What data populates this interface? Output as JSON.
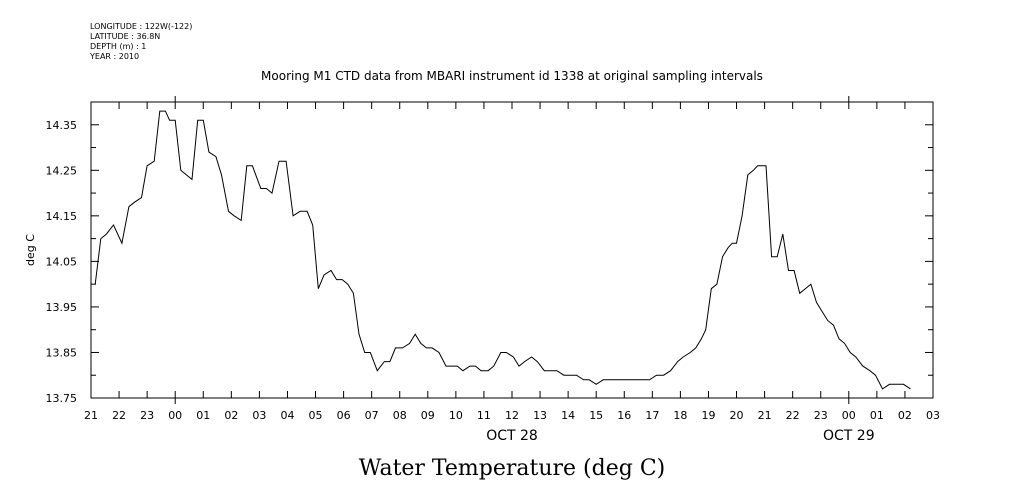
{
  "metadata": {
    "longitude": "LONGITUDE : 122W(-122)",
    "latitude": "LATITUDE : 36.8N",
    "depth": "DEPTH (m) : 1",
    "year": "YEAR : 2010"
  },
  "chart_data": {
    "type": "line",
    "title": "Mooring M1 CTD data from MBARI instrument id 1338 at original sampling intervals",
    "ylabel": "deg C",
    "xlabel": "Water Temperature (deg C)",
    "ylim": [
      13.75,
      14.4
    ],
    "xlim": [
      -3,
      27
    ],
    "y_ticks": [
      "14.35",
      "14.25",
      "14.15",
      "14.05",
      "13.95",
      "13.85",
      "13.75"
    ],
    "y_tick_values": [
      14.35,
      14.25,
      14.15,
      14.05,
      13.95,
      13.85,
      13.75
    ],
    "x_tick_labels": [
      "21",
      "22",
      "23",
      "00",
      "01",
      "02",
      "03",
      "04",
      "05",
      "06",
      "07",
      "08",
      "09",
      "10",
      "11",
      "12",
      "13",
      "14",
      "15",
      "16",
      "17",
      "18",
      "19",
      "20",
      "21",
      "22",
      "23",
      "00",
      "01",
      "02",
      "03"
    ],
    "date_labels": [
      {
        "label": "OCT 28",
        "hour": 12
      },
      {
        "label": "OCT 29",
        "hour": 24
      }
    ],
    "series": [
      {
        "x": [
          -2.85,
          -2.65,
          -2.45,
          -2.2,
          -1.9,
          -1.65,
          -1.45,
          -1.2,
          -1.0,
          -0.75,
          -0.55,
          -0.35,
          -0.2,
          0.0,
          0.2,
          0.4,
          0.6,
          0.8,
          1.0,
          1.2,
          1.45,
          1.65,
          1.9,
          2.1,
          2.35,
          2.55,
          2.75,
          3.05,
          3.25,
          3.45,
          3.7,
          3.95,
          4.2,
          4.45,
          4.7,
          4.9,
          5.1,
          5.3,
          5.55,
          5.75,
          5.95,
          6.15,
          6.35,
          6.55,
          6.75,
          6.95,
          7.2,
          7.45,
          7.65,
          7.85,
          8.1,
          8.35,
          8.55,
          8.75,
          8.95,
          9.15,
          9.4,
          9.65,
          9.85,
          10.05,
          10.25,
          10.5,
          10.7,
          10.9,
          11.15,
          11.35,
          11.6,
          11.8,
          12.05,
          12.25,
          12.45,
          12.7,
          12.9,
          13.15,
          13.4,
          13.6,
          13.85,
          14.1,
          14.3,
          14.55,
          14.75,
          15.0,
          15.25,
          15.5,
          15.75,
          16.0,
          16.3,
          16.6,
          16.9,
          17.15,
          17.4,
          17.65,
          17.9,
          18.1,
          18.35,
          18.55,
          18.75,
          18.9,
          19.1,
          19.3,
          19.5,
          19.7,
          19.85,
          20.0,
          20.2,
          20.4,
          20.6,
          20.75,
          20.9,
          21.05,
          21.25,
          21.45,
          21.65,
          21.85,
          22.05,
          22.25,
          22.45,
          22.65,
          22.85,
          23.05,
          23.25,
          23.45,
          23.65,
          23.85,
          24.05,
          24.25,
          24.5,
          24.75,
          24.95,
          25.2,
          25.45,
          25.7,
          25.95,
          26.2
        ],
        "y": [
          14.0,
          14.1,
          14.11,
          14.13,
          14.09,
          14.17,
          14.18,
          14.19,
          14.26,
          14.27,
          14.38,
          14.38,
          14.36,
          14.36,
          14.25,
          14.24,
          14.23,
          14.36,
          14.36,
          14.29,
          14.28,
          14.24,
          14.16,
          14.15,
          14.14,
          14.26,
          14.26,
          14.21,
          14.21,
          14.2,
          14.27,
          14.27,
          14.15,
          14.16,
          14.16,
          14.13,
          13.99,
          14.02,
          14.03,
          14.01,
          14.01,
          14.0,
          13.98,
          13.89,
          13.85,
          13.85,
          13.81,
          13.83,
          13.83,
          13.86,
          13.86,
          13.87,
          13.89,
          13.87,
          13.86,
          13.86,
          13.85,
          13.82,
          13.82,
          13.82,
          13.81,
          13.82,
          13.82,
          13.81,
          13.81,
          13.82,
          13.85,
          13.85,
          13.84,
          13.82,
          13.83,
          13.84,
          13.83,
          13.81,
          13.81,
          13.81,
          13.8,
          13.8,
          13.8,
          13.79,
          13.79,
          13.78,
          13.79,
          13.79,
          13.79,
          13.79,
          13.79,
          13.79,
          13.79,
          13.8,
          13.8,
          13.81,
          13.83,
          13.84,
          13.85,
          13.86,
          13.88,
          13.9,
          13.99,
          14.0,
          14.06,
          14.08,
          14.09,
          14.09,
          14.15,
          14.24,
          14.25,
          14.26,
          14.26,
          14.26,
          14.06,
          14.06,
          14.11,
          14.03,
          14.03,
          13.98,
          13.99,
          14.0,
          13.96,
          13.94,
          13.92,
          13.91,
          13.88,
          13.87,
          13.85,
          13.84,
          13.82,
          13.81,
          13.8,
          13.77,
          13.78,
          13.78,
          13.78,
          13.77
        ]
      }
    ]
  }
}
